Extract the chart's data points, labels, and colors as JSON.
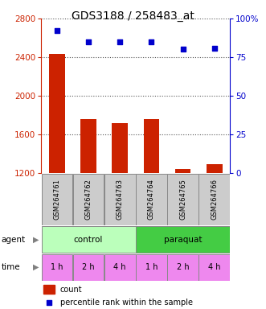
{
  "title": "GDS3188 / 258483_at",
  "samples": [
    "GSM264761",
    "GSM264762",
    "GSM264763",
    "GSM264764",
    "GSM264765",
    "GSM264766"
  ],
  "counts": [
    2430,
    1760,
    1720,
    1760,
    1245,
    1290
  ],
  "percentile_ranks": [
    92,
    85,
    85,
    85,
    80,
    81
  ],
  "ylim_left": [
    1200,
    2800
  ],
  "ylim_right": [
    0,
    100
  ],
  "yticks_left": [
    1200,
    1600,
    2000,
    2400,
    2800
  ],
  "yticks_right": [
    0,
    25,
    50,
    75,
    100
  ],
  "bar_color": "#cc2200",
  "dot_color": "#0000cc",
  "bar_width": 0.5,
  "agent_labels": [
    [
      "control",
      3
    ],
    [
      "paraquat",
      3
    ]
  ],
  "time_labels": [
    "1 h",
    "2 h",
    "4 h",
    "1 h",
    "2 h",
    "4 h"
  ],
  "agent_colors": [
    "#bbffbb",
    "#44cc44"
  ],
  "time_color": "#ee88ee",
  "sample_bg_color": "#cccccc",
  "legend_count_color": "#cc2200",
  "legend_dot_color": "#0000cc",
  "ylabel_right_color": "#0000cc",
  "ylabel_left_color": "#cc2200",
  "dotted_grid_color": "#555555",
  "title_fontsize": 10,
  "tick_fontsize": 7.5,
  "label_fontsize": 7.5
}
